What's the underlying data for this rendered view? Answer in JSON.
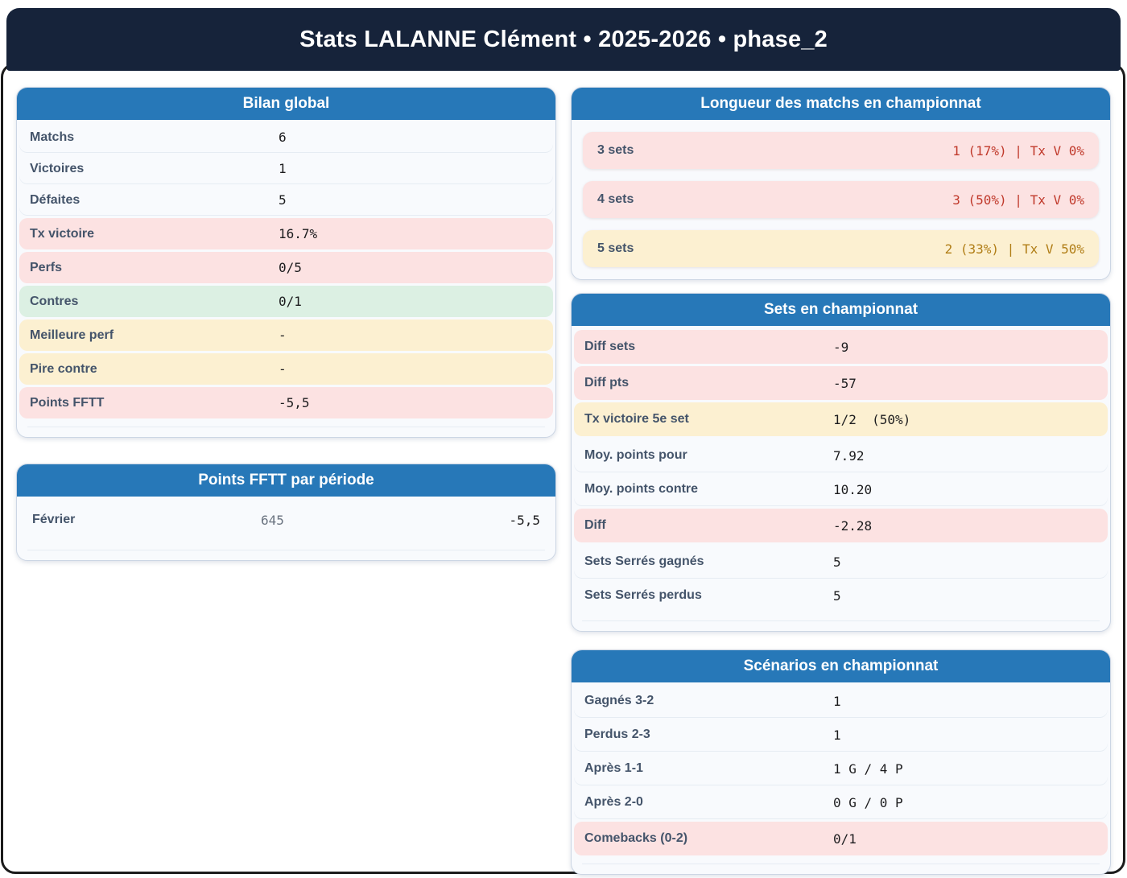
{
  "title": "Stats LALANNE Clément • 2025-2026 • phase_2",
  "colors": {
    "navy": "#16233a",
    "blue": "#2778b8",
    "pink": "#fce2e2",
    "green": "#dcf0e3",
    "cream": "#fcf0d1",
    "red": "#c0392b",
    "amber": "#b07d15"
  },
  "cards": {
    "bilan": {
      "title": "Bilan global",
      "rows": [
        {
          "label": "Matchs",
          "value": "6",
          "tone": "plain"
        },
        {
          "label": "Victoires",
          "value": "1",
          "tone": "plain"
        },
        {
          "label": "Défaites",
          "value": "5",
          "tone": "plain"
        },
        {
          "label": "Tx victoire",
          "value": "16.7%",
          "tone": "pink"
        },
        {
          "label": "Perfs",
          "value": "0/5",
          "tone": "pink"
        },
        {
          "label": "Contres",
          "value": "0/1",
          "tone": "green"
        },
        {
          "label": "Meilleure perf",
          "value": "-",
          "tone": "cream"
        },
        {
          "label": "Pire contre",
          "value": "-",
          "tone": "cream"
        },
        {
          "label": "Points FFTT",
          "value": "-5,5",
          "tone": "pink"
        }
      ]
    },
    "periode": {
      "title": "Points FFTT par période",
      "rows": [
        {
          "label": "Février",
          "mid": "645",
          "value": "-5,5",
          "tone": "plain"
        }
      ]
    },
    "longueur": {
      "title": "Longueur des matchs en championnat",
      "rows": [
        {
          "label": "3 sets",
          "value": "1 (17%) | Tx V 0%",
          "tone": "pink",
          "value_color": "red"
        },
        {
          "label": "4 sets",
          "value": "3 (50%) | Tx V 0%",
          "tone": "pink",
          "value_color": "red"
        },
        {
          "label": "5 sets",
          "value": "2 (33%) | Tx V 50%",
          "tone": "cream",
          "value_color": "amber"
        }
      ]
    },
    "sets": {
      "title": "Sets en championnat",
      "rows": [
        {
          "label": "Diff sets",
          "value": "-9",
          "tone": "pink"
        },
        {
          "label": "Diff pts",
          "value": "-57",
          "tone": "pink"
        },
        {
          "label": "Tx victoire 5e set",
          "value": "1/2  (50%)",
          "tone": "cream"
        },
        {
          "label": "Moy. points pour",
          "value": "7.92",
          "tone": "plain"
        },
        {
          "label": "Moy. points contre",
          "value": "10.20",
          "tone": "plain"
        },
        {
          "label": "Diff",
          "value": "-2.28",
          "tone": "pink"
        },
        {
          "label": "Sets Serrés gagnés",
          "value": "5",
          "tone": "plain"
        },
        {
          "label": "Sets Serrés perdus",
          "value": "5",
          "tone": "plain"
        }
      ]
    },
    "scenarios": {
      "title": "Scénarios en championnat",
      "rows": [
        {
          "label": "Gagnés 3-2",
          "value": "1",
          "tone": "plain"
        },
        {
          "label": "Perdus 2-3",
          "value": "1",
          "tone": "plain"
        },
        {
          "label": "Après 1-1",
          "value": "1 G / 4 P",
          "tone": "plain"
        },
        {
          "label": "Après 2-0",
          "value": "0 G / 0 P",
          "tone": "plain"
        },
        {
          "label": "Comebacks (0-2)",
          "value": "0/1",
          "tone": "pink"
        }
      ]
    }
  }
}
